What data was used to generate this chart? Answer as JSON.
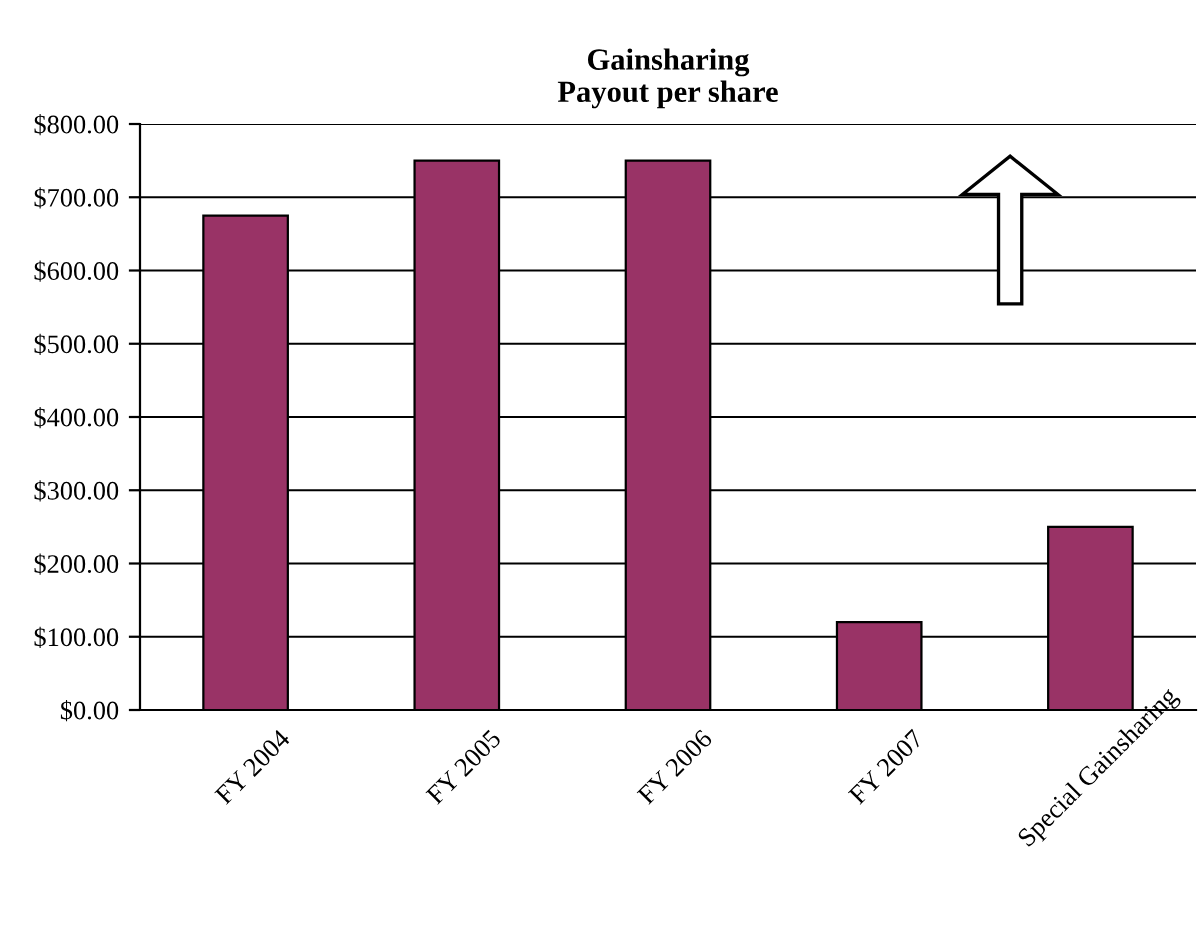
{
  "chart_data": {
    "type": "bar",
    "title": "Gainsharing\nPayout per share",
    "categories": [
      "FY 2004",
      "FY 2005",
      "FY 2006",
      "FY 2007",
      "Special Gainsharing"
    ],
    "values": [
      675,
      750,
      750,
      120,
      250
    ],
    "color": "#993366",
    "ylim": [
      0,
      800
    ],
    "yticks": [
      {
        "value": 0,
        "label": "$0.00"
      },
      {
        "value": 100,
        "label": "$100.00"
      },
      {
        "value": 200,
        "label": "$200.00"
      },
      {
        "value": 300,
        "label": "$300.00"
      },
      {
        "value": 400,
        "label": "$400.00"
      },
      {
        "value": 500,
        "label": "$500.00"
      },
      {
        "value": 600,
        "label": "$600.00"
      },
      {
        "value": 700,
        "label": "$700.00"
      },
      {
        "value": 800,
        "label": "$800.00"
      }
    ],
    "grid": "y"
  }
}
